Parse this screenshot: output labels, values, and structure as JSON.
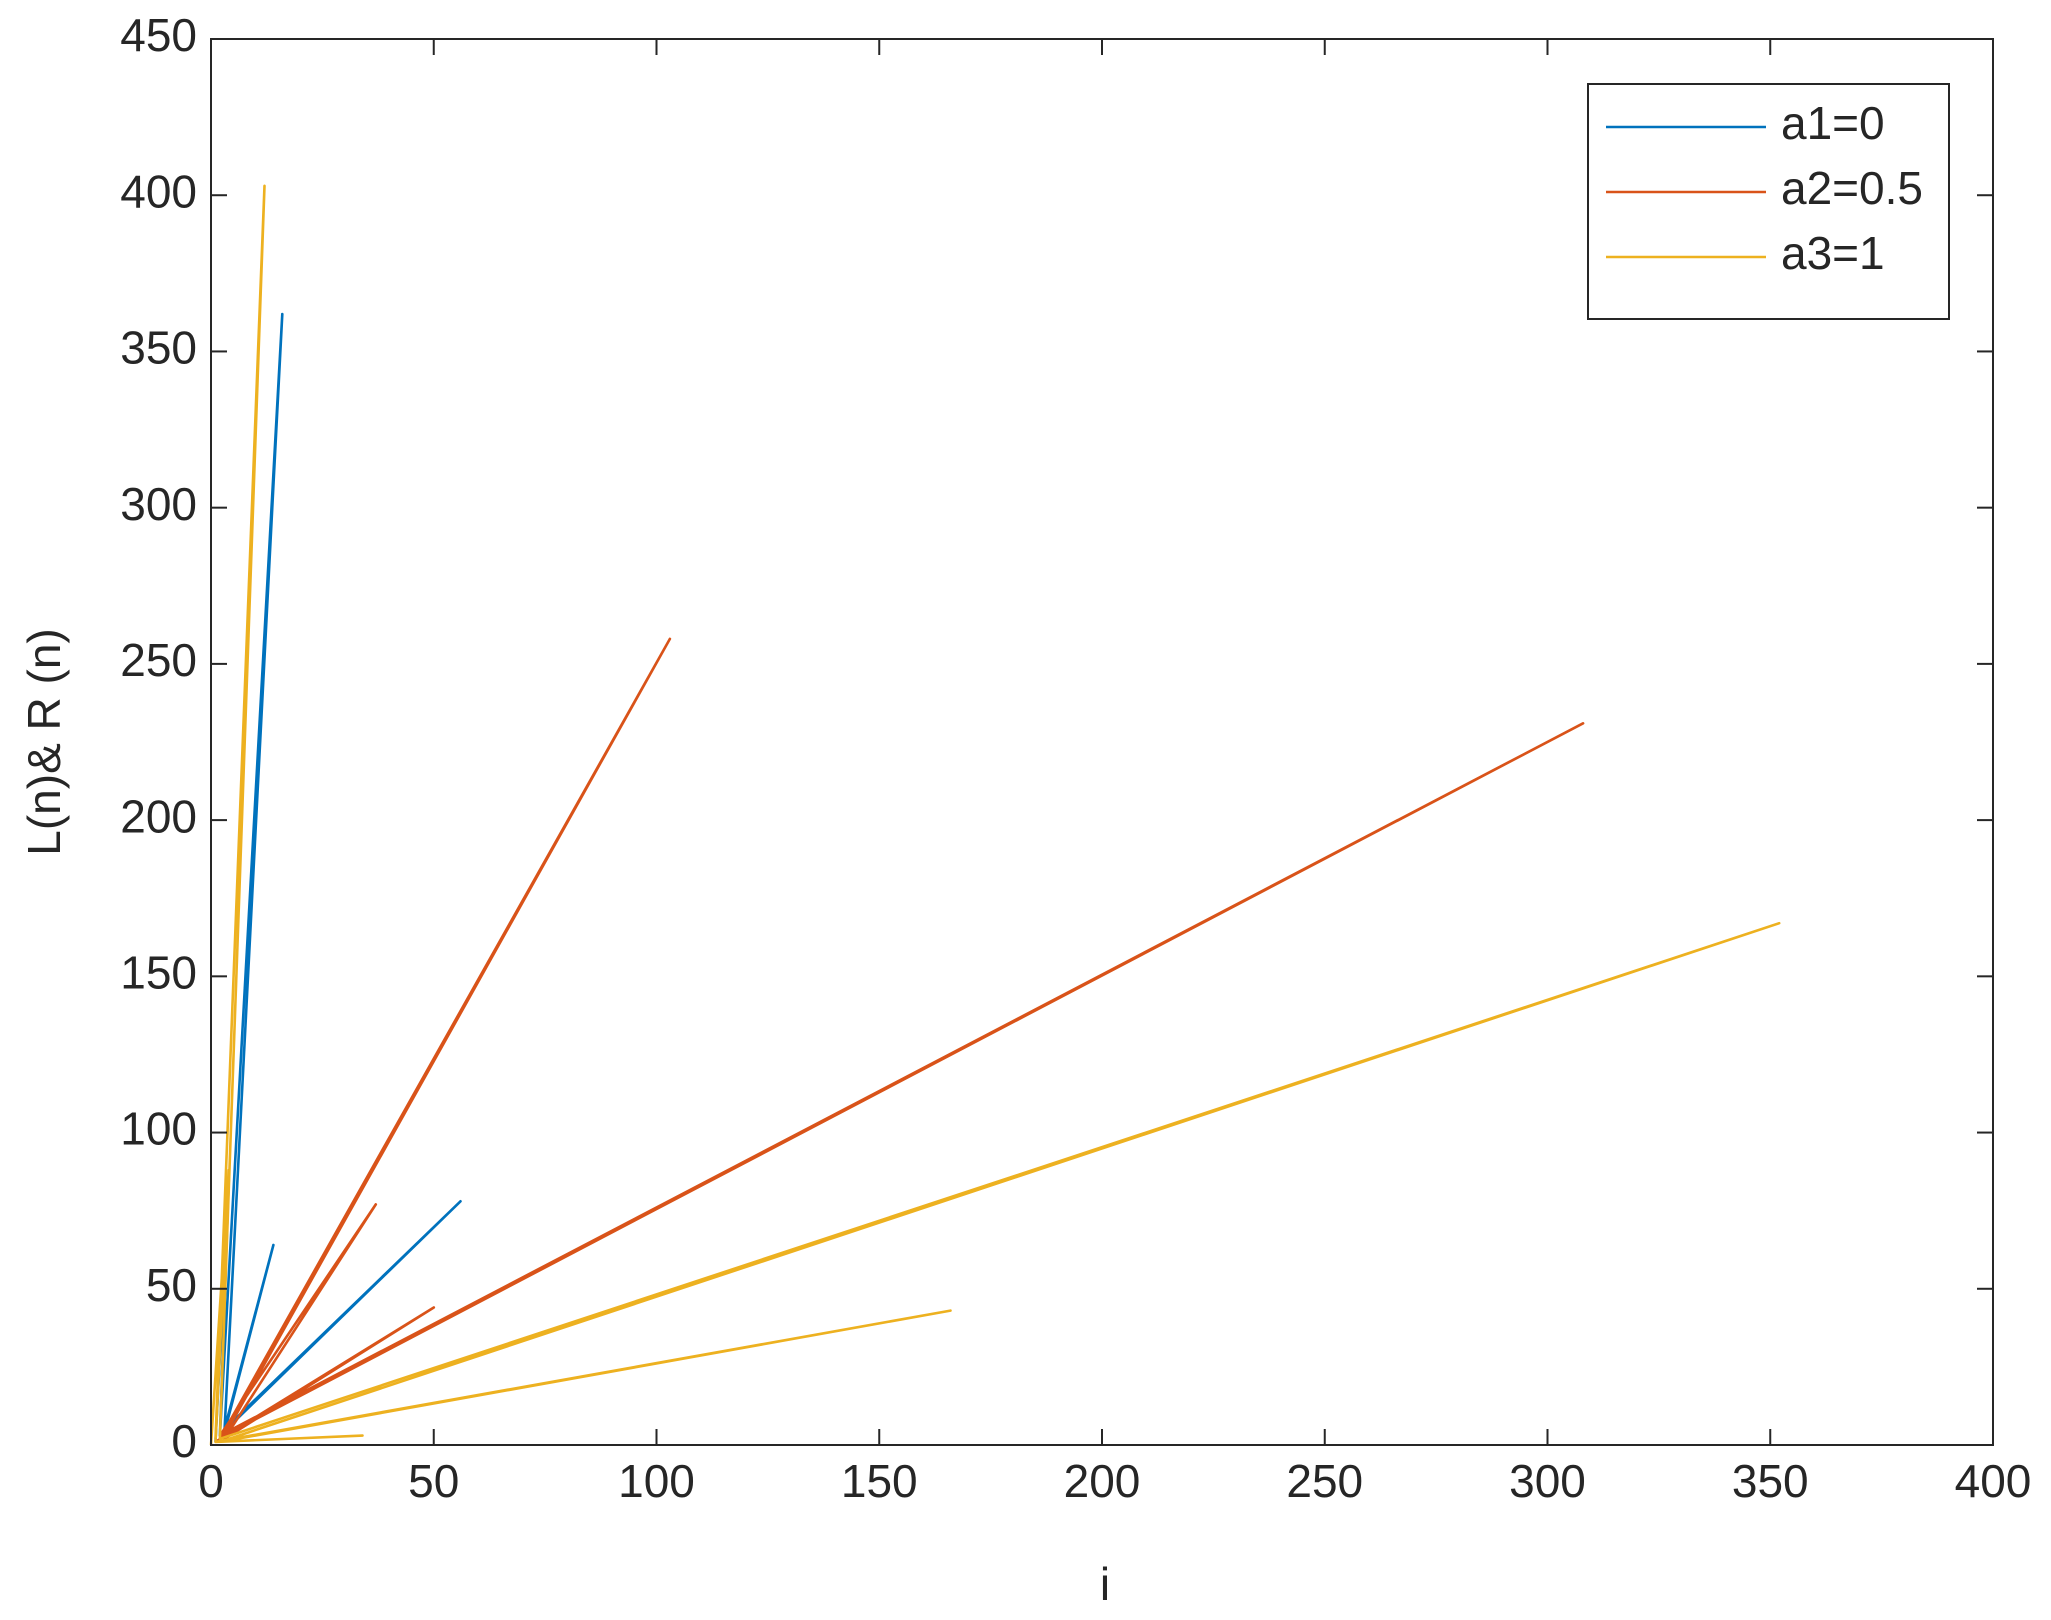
{
  "chart_data": {
    "type": "line",
    "xlabel": "i",
    "ylabel": "L(n)& R (n)",
    "xlim": [
      0,
      400
    ],
    "ylim": [
      0,
      450
    ],
    "xticks": [
      0,
      50,
      100,
      150,
      200,
      250,
      300,
      350,
      400
    ],
    "yticks": [
      0,
      50,
      100,
      150,
      200,
      250,
      300,
      350,
      400,
      450
    ],
    "legend": "upper right",
    "series": [
      {
        "name": "a1=0",
        "color": "#0072BD",
        "x": [
          2,
          16,
          3,
          14,
          3,
          56,
          2,
          4,
          1
        ],
        "y": [
          3,
          362,
          4,
          64,
          5,
          78,
          3,
          85,
          1
        ]
      },
      {
        "name": "a2=0.5",
        "color": "#D95319",
        "x": [
          2,
          103,
          3,
          308,
          2,
          37,
          3,
          50,
          1
        ],
        "y": [
          2,
          258,
          3,
          231,
          3,
          77,
          2,
          44,
          1
        ]
      },
      {
        "name": "a3=1",
        "color": "#EDB120",
        "x": [
          1,
          12,
          2,
          352,
          2,
          166,
          1,
          34,
          1,
          4,
          0
        ],
        "y": [
          2,
          403,
          2,
          167,
          1,
          43,
          1,
          3,
          1,
          88,
          0
        ]
      }
    ]
  }
}
